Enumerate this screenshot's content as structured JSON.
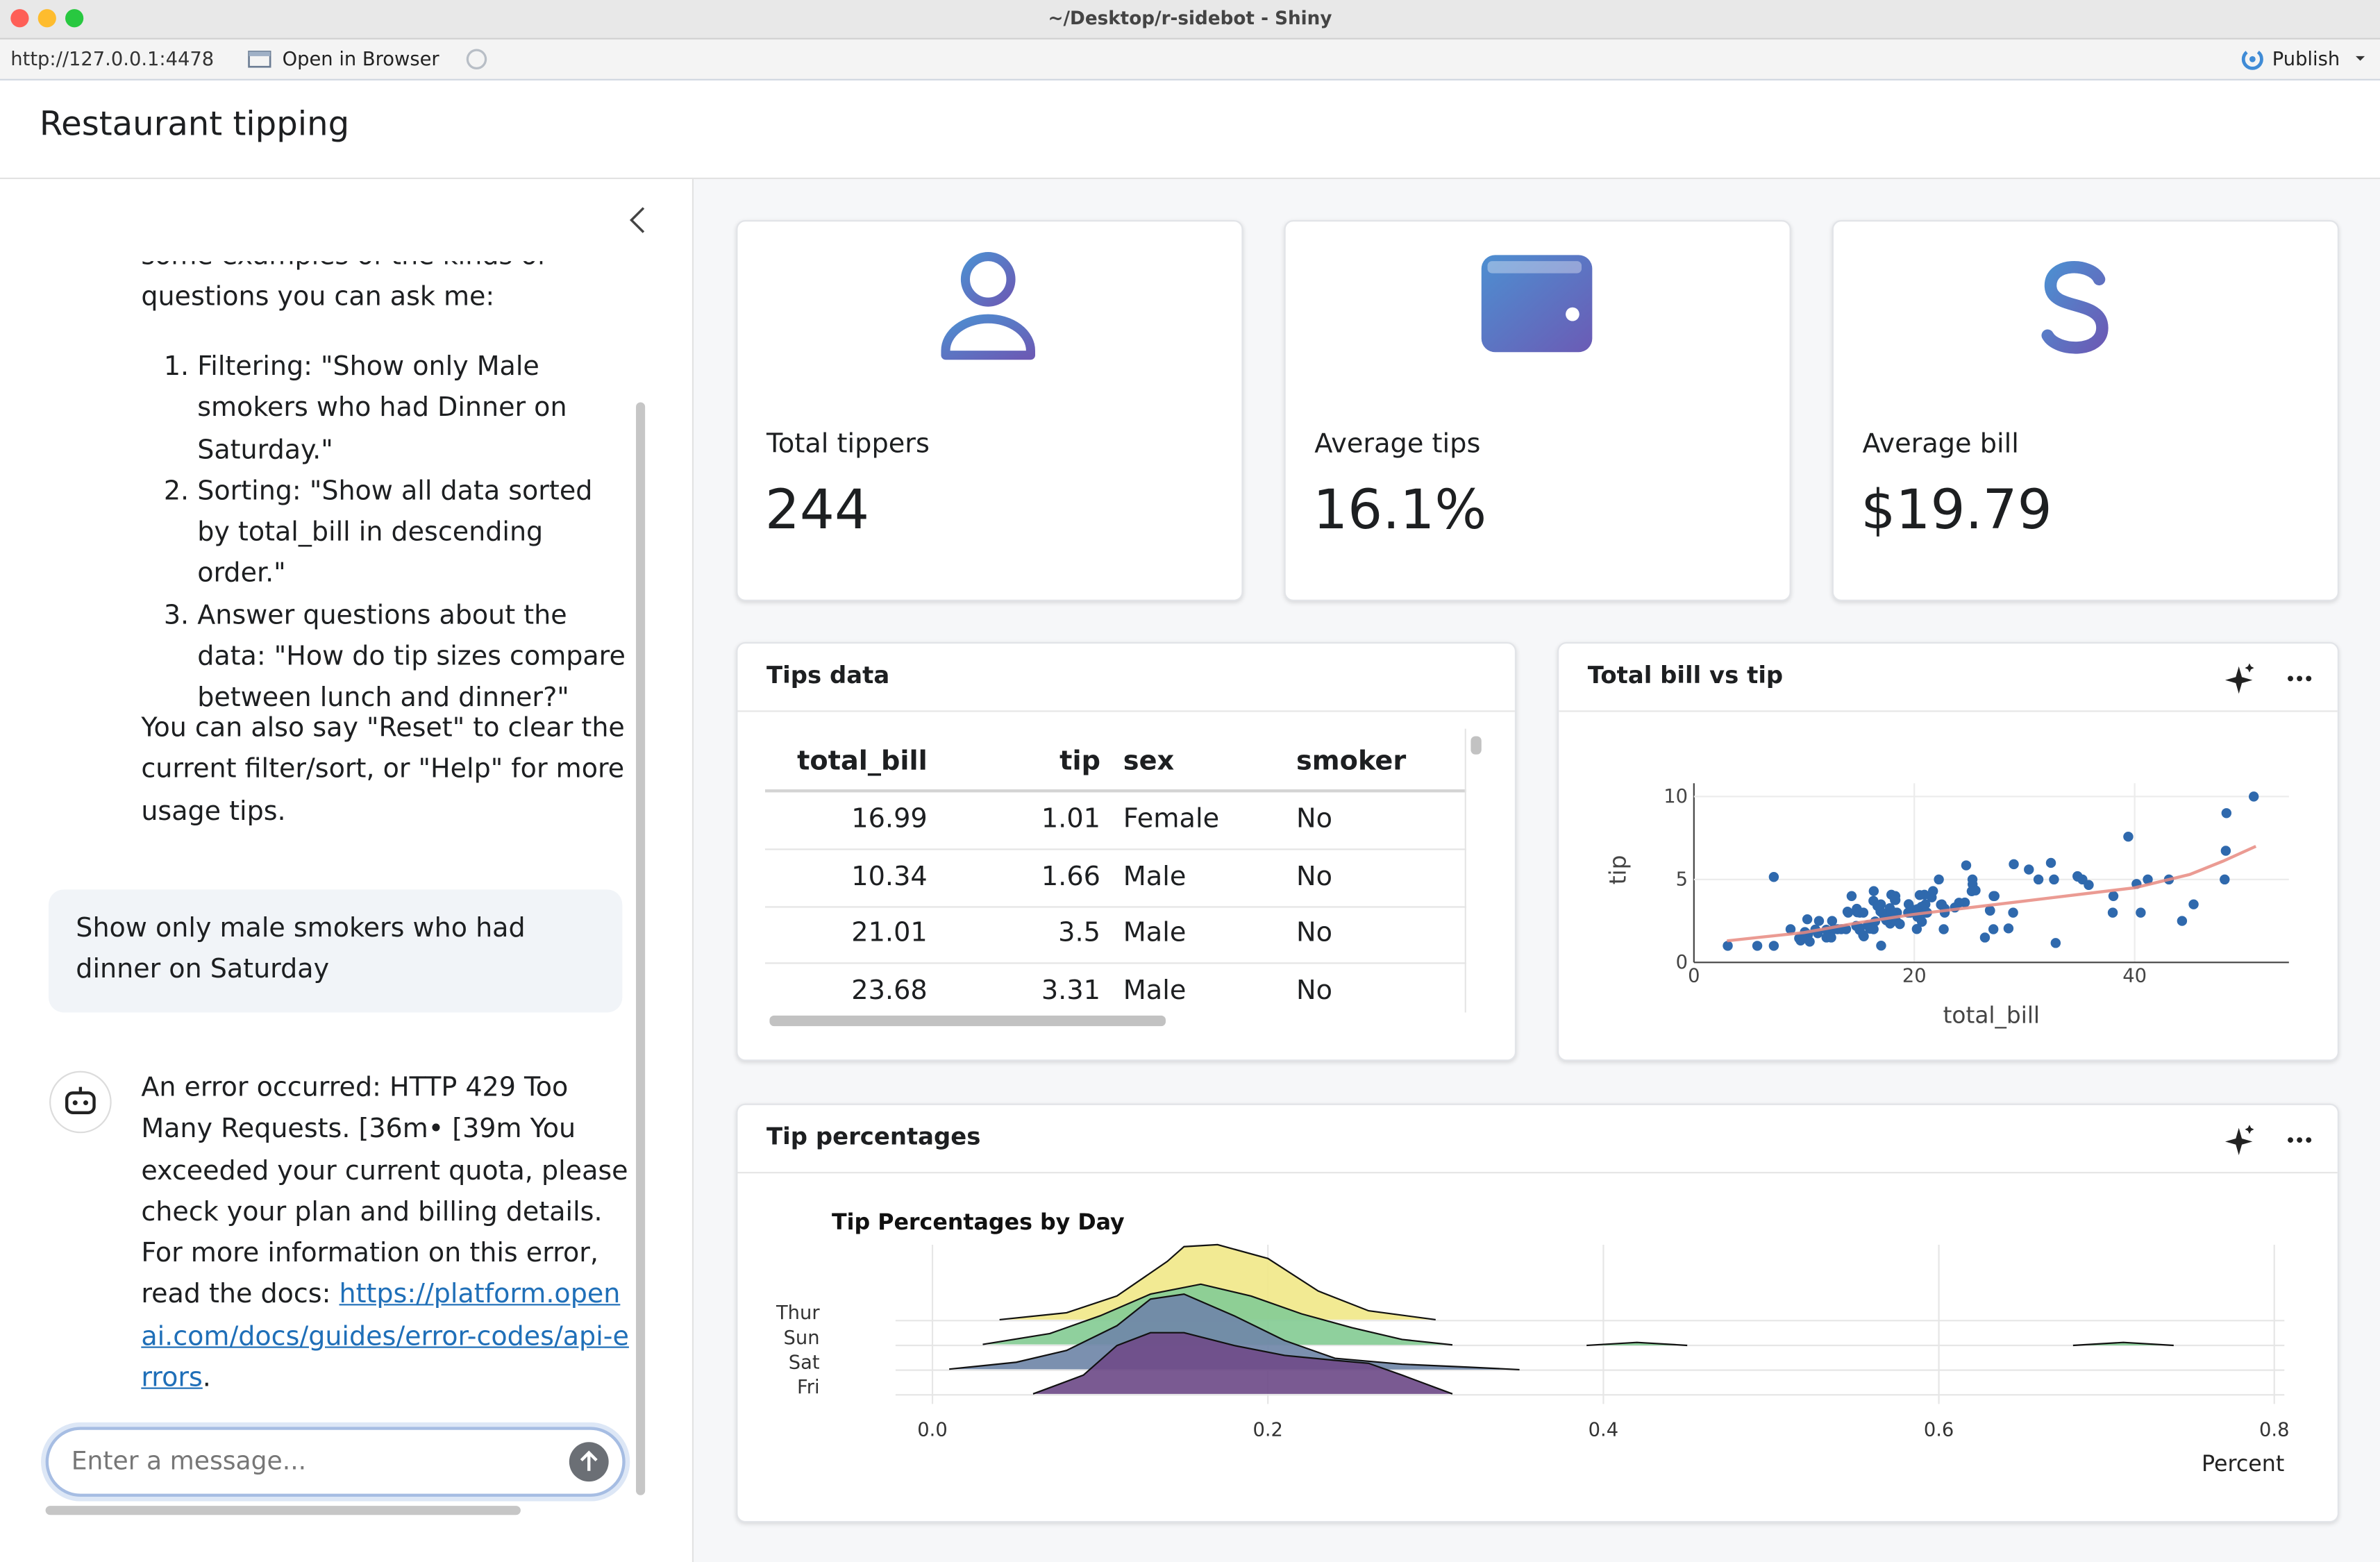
{
  "window": {
    "title": "~/Desktop/r-sidebot - Shiny",
    "url": "http://127.0.0.1:4478",
    "open_in_browser": "Open in Browser",
    "publish": "Publish"
  },
  "header": {
    "title": "Restaurant tipping"
  },
  "chat": {
    "intro": "some examples of the kinds of questions you can ask me:",
    "examples": [
      "Filtering: \"Show only Male smokers who had Dinner on Saturday.\"",
      "Sorting: \"Show all data sorted by total_bill in descending order.\"",
      "Answer questions about the data: \"How do tip sizes compare between lunch and dinner?\""
    ],
    "reset_note": "You can also say \"Reset\" to clear the current filter/sort, or \"Help\" for more usage tips.",
    "user_message": "Show only male smokers who had dinner on Saturday",
    "error_text": "An error occurred: HTTP 429 Too Many Requests.  [36m•  [39m You exceeded your current quota, please check your plan and billing details. For more information on this error, read the docs: ",
    "error_link": "https://platform.openai.com/docs/guides/error-codes/api-errors",
    "error_end": ".",
    "input_placeholder": "Enter a message..."
  },
  "value_boxes": [
    {
      "label": "Total tippers",
      "value": 244
    },
    {
      "label": "Average tips",
      "value": "16.1%"
    },
    {
      "label": "Average bill",
      "value": "$19.79"
    }
  ],
  "table": {
    "title": "Tips data",
    "columns": [
      "total_bill",
      "tip",
      "sex",
      "smoker"
    ],
    "rows": [
      [
        16.99,
        1.01,
        "Female",
        "No"
      ],
      [
        10.34,
        1.66,
        "Male",
        "No"
      ],
      [
        21.01,
        3.5,
        "Male",
        "No"
      ],
      [
        23.68,
        3.31,
        "Male",
        "No"
      ]
    ]
  },
  "chart_data": [
    {
      "type": "scatter",
      "title": "Total bill vs tip",
      "xlabel": "total_bill",
      "ylabel": "tip",
      "xlim": [
        0,
        54
      ],
      "ylim": [
        0,
        10.8
      ],
      "xticks": [
        0,
        20,
        40
      ],
      "yticks": [
        0,
        5,
        10
      ],
      "grid": true,
      "color": "#2f69ad",
      "x": [
        16.99,
        10.34,
        21.01,
        23.68,
        24.59,
        25.29,
        8.77,
        26.88,
        15.04,
        14.78,
        10.27,
        35.26,
        15.42,
        18.43,
        14.83,
        21.58,
        10.33,
        16.29,
        16.97,
        20.65,
        17.92,
        20.29,
        15.77,
        39.42,
        19.82,
        17.81,
        13.37,
        12.69,
        21.7,
        19.65,
        9.55,
        18.35,
        15.06,
        20.69,
        17.78,
        24.06,
        16.31,
        16.93,
        18.69,
        31.27,
        16.04,
        17.46,
        13.94,
        9.68,
        30.4,
        18.29,
        22.23,
        32.4,
        28.55,
        18.04,
        12.54,
        10.29,
        34.81,
        9.94,
        25.56,
        19.49,
        38.01,
        26.41,
        11.24,
        48.27,
        20.29,
        13.81,
        11.02,
        18.29,
        17.59,
        20.08,
        16.45,
        3.07,
        20.23,
        15.01,
        12.02,
        17.07,
        26.86,
        25.28,
        14.73,
        10.51,
        17.92,
        27.2,
        22.76,
        17.29,
        19.44,
        16.66,
        10.07,
        32.68,
        15.98,
        34.83,
        13.03,
        18.28,
        24.71,
        21.16,
        28.97,
        22.49,
        5.75,
        16.32,
        22.75,
        40.17,
        27.28,
        12.03,
        21.01,
        12.46,
        11.35,
        15.38,
        44.3,
        22.42,
        20.92,
        15.36,
        20.49,
        25.21,
        18.24,
        14.31,
        14,
        7.25,
        50.81,
        48.33,
        45.35,
        48.17,
        7.25,
        40.55,
        43.11,
        41.19,
        38.07,
        32.83,
        35.83,
        29.03,
        27.18,
        22.67
      ],
      "values": [
        1.01,
        1.66,
        3.5,
        3.31,
        3.61,
        4.71,
        2,
        3.12,
        1.96,
        3.23,
        1.71,
        5,
        1.57,
        3,
        3.02,
        3.92,
        1.67,
        3.71,
        3.5,
        3.35,
        4.08,
        2.75,
        2.23,
        7.58,
        3.18,
        2.34,
        2,
        2,
        4.3,
        3,
        1.45,
        2.5,
        3,
        2.45,
        3.27,
        3.6,
        2,
        3.07,
        2.31,
        5,
        2.24,
        2.54,
        3.06,
        1.32,
        5.6,
        3,
        5,
        6,
        2.05,
        3,
        2.5,
        2.6,
        5.2,
        1.56,
        4.34,
        3.51,
        3,
        1.5,
        1.76,
        6.73,
        3.21,
        2,
        1.98,
        3.76,
        2.64,
        3.15,
        2.47,
        1,
        2.01,
        2.09,
        1.97,
        3,
        3.14,
        5,
        2.2,
        1.25,
        3.08,
        4,
        3,
        2.71,
        3,
        3.4,
        1.83,
        5,
        2.03,
        5.17,
        2,
        4,
        5.85,
        3,
        3,
        3.5,
        1,
        4.3,
        3.25,
        4.73,
        4,
        1.5,
        3,
        1.5,
        2.5,
        3,
        2.5,
        3.48,
        4.08,
        1.64,
        4.06,
        4.29,
        3.76,
        4,
        3,
        1,
        10,
        9,
        3.5,
        5,
        5.15,
        3,
        5,
        5,
        4,
        1.17,
        4.67,
        5.92,
        2,
        2
      ],
      "trend": {
        "color": "#e88a80",
        "x": [
          3,
          10,
          15,
          20,
          25,
          30,
          35,
          40,
          45,
          48,
          51
        ],
        "values": [
          1.3,
          1.8,
          2.4,
          2.9,
          3.3,
          3.7,
          4.1,
          4.5,
          5.3,
          6.1,
          7.0
        ]
      }
    },
    {
      "type": "ridgeline",
      "card_title": "Tip percentages",
      "title": "Tip Percentages by Day",
      "xlabel": "Percent",
      "xlim": [
        -0.022,
        0.806
      ],
      "xticks": [
        {
          "value": 0,
          "label": "0.0"
        },
        0.2,
        0.4,
        0.6,
        0.8
      ],
      "grid": true,
      "series": [
        {
          "name": "Thur",
          "color": "#f1e88a",
          "x": [
            0.04,
            0.08,
            0.11,
            0.14,
            0.15,
            0.17,
            0.2,
            0.23,
            0.26,
            0.3
          ],
          "values": [
            0.1,
            0.8,
            2.5,
            6,
            7.5,
            7.7,
            6.3,
            3,
            1,
            0.1
          ]
        },
        {
          "name": "Sun",
          "color": "#86cc95",
          "x": [
            0.03,
            0.07,
            0.1,
            0.13,
            0.16,
            0.19,
            0.22,
            0.25,
            0.28,
            0.31,
            0.35,
            0.39,
            0.42,
            0.45,
            0.5,
            0.6,
            0.68,
            0.71,
            0.74
          ],
          "values": [
            0.1,
            1.2,
            3,
            5.2,
            6.2,
            5,
            3.2,
            1.8,
            0.6,
            0.05,
            null,
            0,
            0.3,
            0,
            null,
            null,
            0,
            0.3,
            0
          ]
        },
        {
          "name": "Sat",
          "color": "#7087a8",
          "x": [
            0.01,
            0.05,
            0.08,
            0.11,
            0.13,
            0.15,
            0.18,
            0.21,
            0.24,
            0.28,
            0.32,
            0.35
          ],
          "values": [
            0.1,
            0.8,
            2,
            4.5,
            7.2,
            7.7,
            5.5,
            3,
            1.2,
            0.6,
            0.3,
            0.05
          ]
        },
        {
          "name": "Fri",
          "color": "#6f4c89",
          "x": [
            0.06,
            0.09,
            0.11,
            0.13,
            0.15,
            0.18,
            0.21,
            0.24,
            0.26,
            0.28,
            0.31
          ],
          "values": [
            0.1,
            2,
            5,
            6.3,
            6.3,
            5,
            4,
            3.5,
            3.2,
            2,
            0.1
          ]
        }
      ]
    }
  ]
}
